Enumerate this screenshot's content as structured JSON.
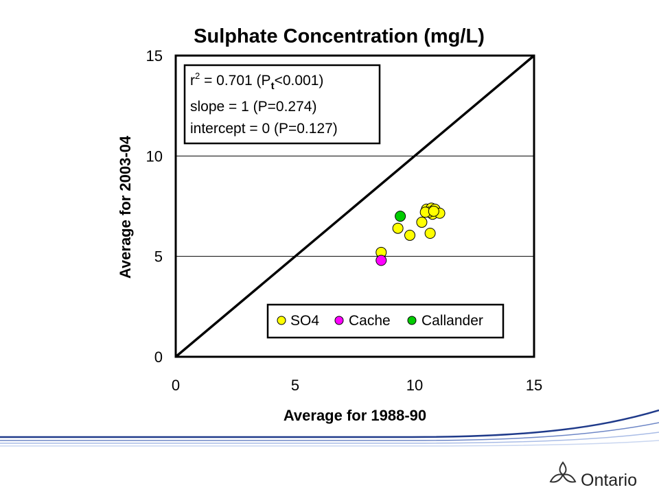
{
  "chart_data": {
    "type": "scatter",
    "title": "Sulphate Concentration (mg/L)",
    "xlabel": "Average for 1988-90",
    "ylabel": "Average for 2003-04",
    "xlim": [
      0,
      15
    ],
    "ylim": [
      0,
      15
    ],
    "xticks": [
      "0",
      "5",
      "10",
      "15"
    ],
    "yticks": [
      "0",
      "5",
      "10",
      "15"
    ],
    "grid": "horizontal",
    "reference_line": {
      "type": "1:1",
      "from": [
        0,
        0
      ],
      "to": [
        15,
        15
      ]
    },
    "legend_position": "bottom-right",
    "stats": {
      "r2_prefix": "r",
      "r2_sup": "2",
      "r2_value": " = 0.701  (P",
      "r2_sub": "t",
      "r2_suffix": "<0.001)",
      "slope": "slope = 1 (P=0.274)",
      "intercept": "intercept = 0 (P=0.127)"
    },
    "series": [
      {
        "name": "SO4",
        "color": "#ffff00",
        "points": [
          [
            8.6,
            5.2
          ],
          [
            9.3,
            6.4
          ],
          [
            9.8,
            6.05
          ],
          [
            10.3,
            6.7
          ],
          [
            10.65,
            6.15
          ],
          [
            10.5,
            7.35
          ],
          [
            10.7,
            7.4
          ],
          [
            10.85,
            7.35
          ],
          [
            10.75,
            7.1
          ],
          [
            11.05,
            7.15
          ],
          [
            10.6,
            7.2
          ],
          [
            10.45,
            7.2
          ],
          [
            10.8,
            7.25
          ]
        ]
      },
      {
        "name": "Cache",
        "color": "#ff00ff",
        "points": [
          [
            8.6,
            4.8
          ]
        ]
      },
      {
        "name": "Callander",
        "color": "#00cc00",
        "points": [
          [
            9.4,
            7.0
          ]
        ]
      }
    ]
  },
  "branding": {
    "logo_text": "Ontario",
    "stripe_colors": [
      "#1f3a8a",
      "#6d86c6",
      "#a9bce6",
      "#c9d6f0"
    ]
  }
}
